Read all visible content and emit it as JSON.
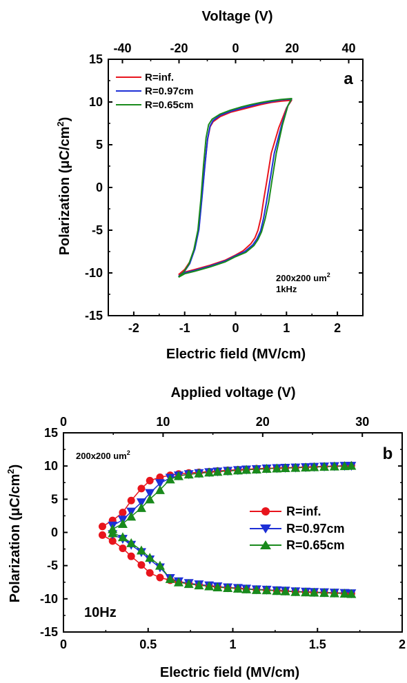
{
  "chart_data": [
    {
      "type": "line",
      "panel_label": "a",
      "xlabel": "Electric field (MV/cm)",
      "ylabel": "Polarization (μC/cm",
      "ylabel_sup": "2",
      "ylabel_close": ")",
      "top_xlabel": "Voltage (V)",
      "xlim": [
        -2.5,
        2.5
      ],
      "ylim": [
        -15,
        15
      ],
      "xticks": [
        -2,
        -1,
        0,
        1,
        2
      ],
      "xtick_labels": [
        "-2",
        "-1",
        "0",
        "1",
        "2"
      ],
      "yticks": [
        -15,
        -10,
        -5,
        0,
        5,
        10,
        15
      ],
      "ytick_labels": [
        "-15",
        "-10",
        "-5",
        "0",
        "5",
        "10",
        "15"
      ],
      "top_xlim": [
        -45,
        45
      ],
      "top_xticks": [
        -40,
        -20,
        0,
        20,
        40
      ],
      "top_xtick_labels": [
        "-40",
        "-20",
        "0",
        "20",
        "40"
      ],
      "annotation": {
        "line1": "200x200 um",
        "line1_sup": "2",
        "line2": "1kHz"
      },
      "legend_position": "top-left",
      "grid": false,
      "series": [
        {
          "name": "R=inf.",
          "color": "#e8141c",
          "x": [
            -1.12,
            -1.0,
            -0.9,
            -0.8,
            -0.72,
            -0.66,
            -0.6,
            -0.55,
            -0.5,
            -0.44,
            -0.3,
            -0.1,
            0.1,
            0.3,
            0.5,
            0.7,
            0.9,
            1.1,
            1.0,
            0.85,
            0.7,
            0.62,
            0.55,
            0.5,
            0.44,
            0.38,
            0.3,
            0.15,
            0.0,
            -0.2,
            -0.5,
            -0.8,
            -1.0,
            -1.12
          ],
          "y": [
            -10.2,
            -9.6,
            -8.7,
            -7.0,
            -4.7,
            -1.0,
            2.8,
            5.6,
            7.1,
            7.7,
            8.3,
            8.8,
            9.1,
            9.4,
            9.7,
            9.95,
            10.1,
            10.2,
            9.3,
            7.0,
            4.0,
            1.0,
            -1.5,
            -3.5,
            -5.0,
            -5.9,
            -6.6,
            -7.4,
            -7.9,
            -8.5,
            -9.1,
            -9.6,
            -9.9,
            -10.2
          ]
        },
        {
          "name": "R=0.97cm",
          "color": "#1d2fd6",
          "x": [
            -1.12,
            -1.0,
            -0.9,
            -0.8,
            -0.72,
            -0.66,
            -0.6,
            -0.55,
            -0.5,
            -0.44,
            -0.3,
            -0.1,
            0.1,
            0.3,
            0.5,
            0.7,
            0.9,
            1.1,
            1.02,
            0.9,
            0.76,
            0.68,
            0.61,
            0.55,
            0.49,
            0.42,
            0.34,
            0.18,
            0.0,
            -0.2,
            -0.5,
            -0.8,
            -1.0,
            -1.12
          ],
          "y": [
            -10.4,
            -9.8,
            -8.9,
            -7.2,
            -4.9,
            -1.2,
            2.7,
            5.7,
            7.2,
            7.85,
            8.45,
            8.9,
            9.25,
            9.55,
            9.85,
            10.05,
            10.25,
            10.35,
            9.5,
            7.2,
            4.0,
            1.0,
            -1.6,
            -3.6,
            -5.1,
            -6.0,
            -6.7,
            -7.5,
            -8.0,
            -8.6,
            -9.2,
            -9.7,
            -10.0,
            -10.4
          ]
        },
        {
          "name": "R=0.65cm",
          "color": "#198a1c",
          "x": [
            -1.12,
            -1.02,
            -0.92,
            -0.82,
            -0.74,
            -0.68,
            -0.63,
            -0.58,
            -0.53,
            -0.46,
            -0.3,
            -0.1,
            0.1,
            0.3,
            0.5,
            0.7,
            0.9,
            1.1,
            1.03,
            0.92,
            0.8,
            0.72,
            0.65,
            0.58,
            0.51,
            0.44,
            0.36,
            0.2,
            0.0,
            -0.2,
            -0.5,
            -0.8,
            -1.0,
            -1.12
          ],
          "y": [
            -10.5,
            -9.9,
            -9.0,
            -7.3,
            -5.0,
            -1.3,
            2.6,
            5.8,
            7.35,
            8.0,
            8.6,
            9.05,
            9.4,
            9.7,
            9.95,
            10.15,
            10.3,
            10.4,
            9.6,
            7.3,
            4.0,
            1.0,
            -1.7,
            -3.7,
            -5.2,
            -6.1,
            -6.8,
            -7.6,
            -8.1,
            -8.7,
            -9.3,
            -9.8,
            -10.1,
            -10.5
          ]
        }
      ]
    },
    {
      "type": "scatter",
      "panel_label": "b",
      "xlabel": "Electric field (MV/cm)",
      "ylabel": "Polarization (μC/cm",
      "ylabel_sup": "2",
      "ylabel_close": ")",
      "top_xlabel": "Applied voltage (V)",
      "xlim": [
        0,
        2
      ],
      "ylim": [
        -15,
        15
      ],
      "xticks": [
        0,
        0.5,
        1,
        1.5,
        2
      ],
      "xtick_labels": [
        "0",
        "0.5",
        "1",
        "1.5",
        "2"
      ],
      "yticks": [
        -15,
        -10,
        -5,
        0,
        5,
        10,
        15
      ],
      "ytick_labels": [
        "-15",
        "-10",
        "-5",
        "0",
        "5",
        "10",
        "15"
      ],
      "top_xlim": [
        0,
        34
      ],
      "top_xticks": [
        0,
        10,
        20,
        30
      ],
      "top_xtick_labels": [
        "0",
        "10",
        "20",
        "30"
      ],
      "annotation_top_left": {
        "text": "200x200 um",
        "sup": "2"
      },
      "annotation_bottom_left": "10Hz",
      "legend_position": "center-right",
      "grid": false,
      "series": [
        {
          "name": "R=inf.",
          "marker": "circle",
          "color": "#e8141c",
          "x": [
            0.23,
            0.29,
            0.35,
            0.4,
            0.46,
            0.51,
            0.57,
            0.63,
            0.68,
            0.74,
            0.8,
            0.86,
            0.91,
            0.97,
            1.03,
            1.08,
            1.14,
            1.2,
            1.26,
            1.31,
            1.37,
            1.43,
            1.48,
            1.54,
            1.6,
            1.66,
            1.7
          ],
          "y_upper": [
            0.9,
            1.8,
            3.0,
            4.8,
            6.6,
            7.8,
            8.3,
            8.6,
            8.8,
            8.95,
            9.05,
            9.15,
            9.25,
            9.35,
            9.45,
            9.5,
            9.6,
            9.65,
            9.7,
            9.75,
            9.8,
            9.85,
            9.9,
            9.95,
            10.0,
            10.05,
            10.1
          ],
          "y_lower": [
            -0.4,
            -1.3,
            -2.4,
            -3.6,
            -4.9,
            -6.1,
            -6.8,
            -7.2,
            -7.5,
            -7.7,
            -7.9,
            -8.05,
            -8.2,
            -8.3,
            -8.4,
            -8.5,
            -8.6,
            -8.65,
            -8.75,
            -8.8,
            -8.9,
            -8.95,
            -9.0,
            -9.05,
            -9.1,
            -9.15,
            -9.2
          ]
        },
        {
          "name": "R=0.97cm",
          "marker": "triangle-down",
          "color": "#1d2fd6",
          "x": [
            0.29,
            0.35,
            0.4,
            0.46,
            0.51,
            0.57,
            0.63,
            0.68,
            0.74,
            0.8,
            0.86,
            0.91,
            0.97,
            1.03,
            1.08,
            1.14,
            1.2,
            1.26,
            1.31,
            1.37,
            1.43,
            1.48,
            1.54,
            1.6,
            1.66,
            1.7
          ],
          "y_upper": [
            1.0,
            1.9,
            3.1,
            4.5,
            5.9,
            7.4,
            8.2,
            8.55,
            8.75,
            8.9,
            9.05,
            9.15,
            9.25,
            9.35,
            9.45,
            9.5,
            9.6,
            9.65,
            9.7,
            9.75,
            9.8,
            9.85,
            9.9,
            9.95,
            10.0,
            10.0
          ],
          "y_lower": [
            -0.3,
            -1.0,
            -1.9,
            -3.0,
            -4.1,
            -5.3,
            -6.9,
            -7.4,
            -7.65,
            -7.85,
            -8.0,
            -8.15,
            -8.3,
            -8.4,
            -8.5,
            -8.6,
            -8.65,
            -8.75,
            -8.8,
            -8.9,
            -8.95,
            -9.0,
            -9.05,
            -9.1,
            -9.15,
            -9.2
          ]
        },
        {
          "name": "R=0.65cm",
          "marker": "triangle-up",
          "color": "#198a1c",
          "x": [
            0.29,
            0.35,
            0.4,
            0.46,
            0.51,
            0.57,
            0.63,
            0.68,
            0.74,
            0.8,
            0.86,
            0.91,
            0.97,
            1.03,
            1.08,
            1.14,
            1.2,
            1.26,
            1.31,
            1.37,
            1.43,
            1.48,
            1.54,
            1.6,
            1.66,
            1.7
          ],
          "y_upper": [
            0.5,
            1.3,
            2.4,
            3.7,
            5.0,
            6.4,
            8.0,
            8.5,
            8.75,
            8.9,
            9.05,
            9.15,
            9.25,
            9.35,
            9.45,
            9.5,
            9.6,
            9.65,
            9.7,
            9.75,
            9.8,
            9.85,
            9.9,
            9.95,
            10.0,
            10.05
          ],
          "y_lower": [
            -0.1,
            -0.7,
            -1.6,
            -2.7,
            -3.8,
            -5.0,
            -7.0,
            -7.5,
            -7.75,
            -7.95,
            -8.1,
            -8.25,
            -8.35,
            -8.45,
            -8.55,
            -8.65,
            -8.7,
            -8.8,
            -8.85,
            -8.95,
            -9.0,
            -9.05,
            -9.1,
            -9.15,
            -9.2,
            -9.25
          ]
        }
      ]
    }
  ]
}
